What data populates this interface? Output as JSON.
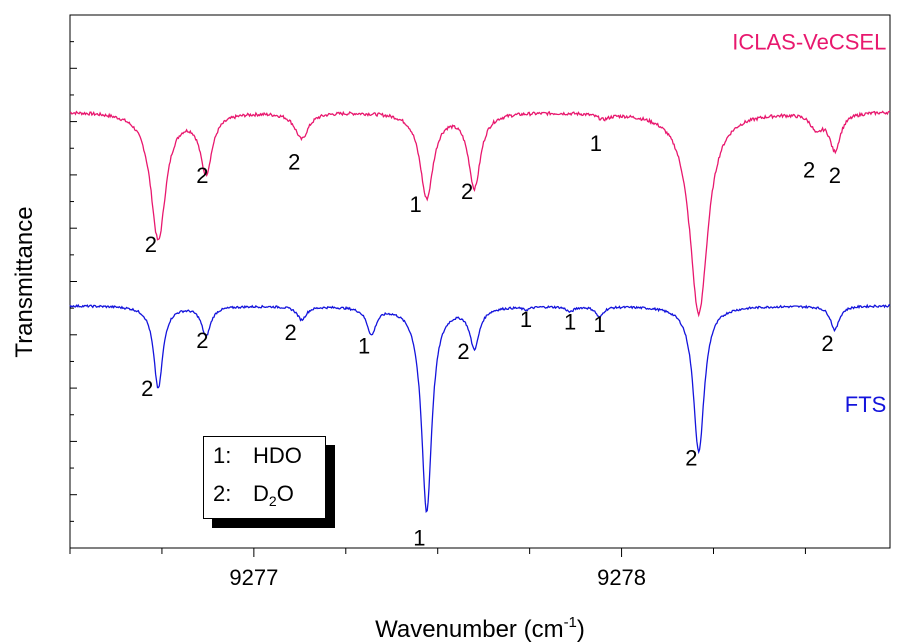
{
  "chart_data": {
    "type": "line",
    "xlabel_text": "Wavenumber (cm",
    "xlabel_sup": "-1",
    "xlabel_end": ")",
    "ylabel": "Transmittance",
    "xlim": [
      9276.5,
      9278.73
    ],
    "ylim": [
      0.0,
      1.0
    ],
    "xticks": [
      9277,
      9278
    ],
    "xtick_labels": [
      "9277",
      "9278"
    ],
    "y_tick_labels_shown": false,
    "grid": false,
    "legend": {
      "placement": "bottom-left",
      "entries": [
        {
          "num": "1:",
          "text": "HDO"
        },
        {
          "num": "2:",
          "text": "D",
          "sub": "2",
          "after": "O"
        }
      ]
    },
    "series": [
      {
        "name": "ICLAS-VeCSEL",
        "color": "#e8186e",
        "baseline": 0.82,
        "noise": 0.003,
        "lines": [
          {
            "x": 9276.74,
            "depth": 0.24,
            "width": 0.025
          },
          {
            "x": 9276.87,
            "depth": 0.11,
            "width": 0.02
          },
          {
            "x": 9277.13,
            "depth": 0.05,
            "width": 0.022
          },
          {
            "x": 9277.47,
            "depth": 0.16,
            "width": 0.022
          },
          {
            "x": 9277.6,
            "depth": 0.14,
            "width": 0.02
          },
          {
            "x": 9277.95,
            "depth": 0.01,
            "width": 0.02
          },
          {
            "x": 9278.21,
            "depth": 0.38,
            "width": 0.03
          },
          {
            "x": 9278.53,
            "depth": 0.03,
            "width": 0.018
          },
          {
            "x": 9278.58,
            "depth": 0.07,
            "width": 0.018
          }
        ],
        "peak_labels": [
          {
            "x": 9276.72,
            "y": 0.555,
            "text": "2"
          },
          {
            "x": 9276.86,
            "y": 0.685,
            "text": "2"
          },
          {
            "x": 9277.11,
            "y": 0.71,
            "text": "2"
          },
          {
            "x": 9277.44,
            "y": 0.63,
            "text": "1"
          },
          {
            "x": 9277.58,
            "y": 0.655,
            "text": "2"
          },
          {
            "x": 9277.93,
            "y": 0.745,
            "text": "1"
          },
          {
            "x": 9278.51,
            "y": 0.695,
            "text": "2"
          },
          {
            "x": 9278.58,
            "y": 0.685,
            "text": "2"
          }
        ],
        "series_label": {
          "x": 9278.72,
          "y": 0.935,
          "text": "ICLAS-VeCSEL"
        }
      },
      {
        "name": "FTS",
        "color": "#1414dc",
        "baseline": 0.455,
        "noise": 0.002,
        "lines": [
          {
            "x": 9276.74,
            "depth": 0.155,
            "width": 0.015
          },
          {
            "x": 9276.87,
            "depth": 0.055,
            "width": 0.015
          },
          {
            "x": 9277.13,
            "depth": 0.025,
            "width": 0.015
          },
          {
            "x": 9277.32,
            "depth": 0.05,
            "width": 0.015
          },
          {
            "x": 9277.47,
            "depth": 0.385,
            "width": 0.017
          },
          {
            "x": 9277.6,
            "depth": 0.075,
            "width": 0.016
          },
          {
            "x": 9277.74,
            "depth": 0.005,
            "width": 0.012
          },
          {
            "x": 9277.86,
            "depth": 0.01,
            "width": 0.012
          },
          {
            "x": 9277.94,
            "depth": 0.02,
            "width": 0.012
          },
          {
            "x": 9278.21,
            "depth": 0.275,
            "width": 0.018
          },
          {
            "x": 9278.58,
            "depth": 0.045,
            "width": 0.014
          }
        ],
        "peak_labels": [
          {
            "x": 9276.71,
            "y": 0.285,
            "text": "2"
          },
          {
            "x": 9276.86,
            "y": 0.375,
            "text": "2"
          },
          {
            "x": 9277.1,
            "y": 0.39,
            "text": "2"
          },
          {
            "x": 9277.3,
            "y": 0.365,
            "text": "1"
          },
          {
            "x": 9277.57,
            "y": 0.355,
            "text": "2"
          },
          {
            "x": 9277.74,
            "y": 0.415,
            "text": "1"
          },
          {
            "x": 9277.86,
            "y": 0.41,
            "text": "1"
          },
          {
            "x": 9277.94,
            "y": 0.405,
            "text": "1"
          },
          {
            "x": 9278.56,
            "y": 0.37,
            "text": "2"
          },
          {
            "x": 9277.45,
            "y": 0.005,
            "text": "1"
          },
          {
            "x": 9278.19,
            "y": 0.155,
            "text": "2"
          },
          {
            "x": 9278.19,
            "y": 0.185,
            "text": ""
          }
        ],
        "series_label": {
          "x": 9278.72,
          "y": 0.255,
          "text": "FTS"
        }
      }
    ]
  }
}
